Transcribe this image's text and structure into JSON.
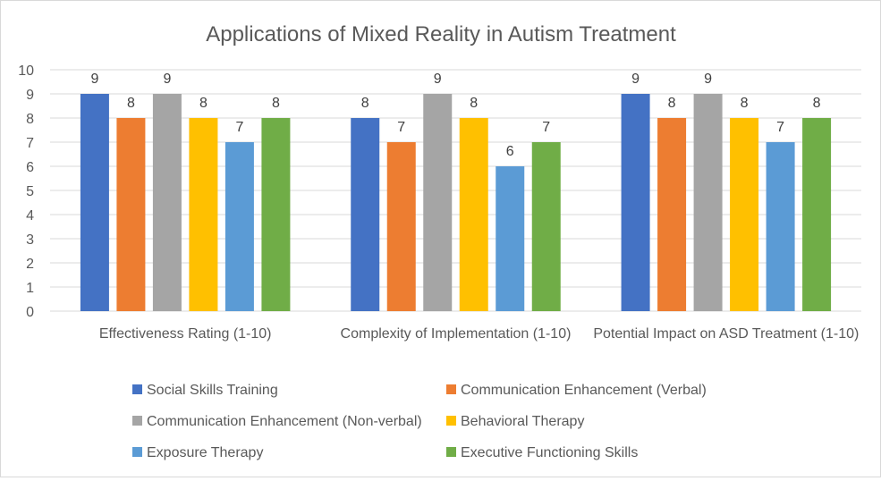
{
  "chart_data": {
    "type": "bar",
    "title": "Applications of Mixed Reality in Autism Treatment",
    "categories": [
      "Effectiveness Rating (1-10)",
      "Complexity of Implementation (1-10)",
      "Potential Impact on ASD Treatment (1-10)"
    ],
    "series": [
      {
        "name": "Social Skills Training",
        "color": "#4472c4",
        "values": [
          9,
          8,
          9
        ]
      },
      {
        "name": "Communication Enhancement (Verbal)",
        "color": "#ed7d31",
        "values": [
          8,
          7,
          8
        ]
      },
      {
        "name": "Communication Enhancement (Non-verbal)",
        "color": "#a5a5a5",
        "values": [
          9,
          9,
          9
        ]
      },
      {
        "name": "Behavioral Therapy",
        "color": "#ffc000",
        "values": [
          8,
          8,
          8
        ]
      },
      {
        "name": "Exposure Therapy",
        "color": "#5b9bd5",
        "values": [
          7,
          6,
          7
        ]
      },
      {
        "name": "Executive Functioning Skills",
        "color": "#70ad47",
        "values": [
          8,
          7,
          8
        ]
      }
    ],
    "ylim": [
      0,
      10
    ],
    "yticks": [
      0,
      1,
      2,
      3,
      4,
      5,
      6,
      7,
      8,
      9,
      10
    ],
    "grid": true,
    "legend_position": "bottom",
    "data_labels": true
  }
}
